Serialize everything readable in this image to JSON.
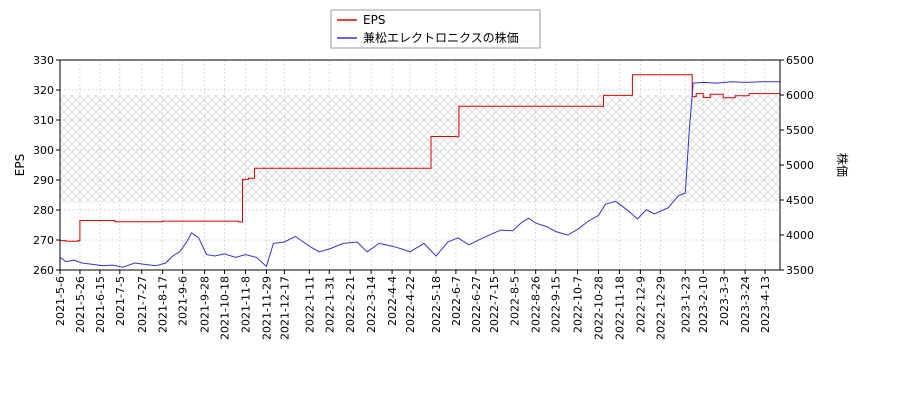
{
  "chart_data": {
    "type": "line",
    "y_left_label": "EPS",
    "y_right_label": "株価",
    "y_left_range": [
      260,
      330
    ],
    "y_right_range": [
      3500,
      6500
    ],
    "y_left_ticks": [
      "260",
      "270",
      "280",
      "290",
      "300",
      "310",
      "320",
      "330"
    ],
    "y_right_ticks": [
      "3500",
      "4000",
      "4500",
      "5000",
      "5500",
      "6000",
      "6500"
    ],
    "x_range": [
      "2021-05-06",
      "2023-04-28"
    ],
    "x_ticks": [
      "2021-5-6",
      "2021-5-26",
      "2021-6-15",
      "2021-7-5",
      "2021-7-27",
      "2021-8-17",
      "2021-9-6",
      "2021-9-28",
      "2021-10-18",
      "2021-11-8",
      "2021-11-29",
      "2021-12-17",
      "2022-1-11",
      "2022-1-31",
      "2022-2-21",
      "2022-3-14",
      "2022-4-4",
      "2022-4-22",
      "2022-5-18",
      "2022-6-7",
      "2022-6-27",
      "2022-7-15",
      "2022-8-5",
      "2022-8-26",
      "2022-9-15",
      "2022-10-7",
      "2022-10-28",
      "2022-11-18",
      "2022-12-9",
      "2022-12-29",
      "2023-1-23",
      "2023-2-10",
      "2023-3-3",
      "2023-3-24",
      "2023-4-13"
    ],
    "legend": {
      "placement": "top-center",
      "entries": [
        "EPS",
        "兼松エレクトロニクスの株価"
      ]
    },
    "grid": true,
    "band_right_axis": [
      4460,
      6000
    ],
    "series": [
      {
        "name": "EPS",
        "axis": "left",
        "color": "#dd0000",
        "step": true,
        "points": [
          [
            "2021-05-06",
            269.8
          ],
          [
            "2021-05-12",
            269.6
          ],
          [
            "2021-05-24",
            269.8
          ],
          [
            "2021-05-26",
            276.5
          ],
          [
            "2021-06-30",
            276.1
          ],
          [
            "2021-08-17",
            276.3
          ],
          [
            "2021-11-01",
            276.0
          ],
          [
            "2021-11-05",
            290.2
          ],
          [
            "2021-11-11",
            290.6
          ],
          [
            "2021-11-17",
            293.9
          ],
          [
            "2022-05-12",
            293.9
          ],
          [
            "2022-05-13",
            304.5
          ],
          [
            "2022-06-07",
            304.4
          ],
          [
            "2022-06-10",
            314.6
          ],
          [
            "2022-10-31",
            314.6
          ],
          [
            "2022-11-02",
            318.2
          ],
          [
            "2022-11-29",
            318.2
          ],
          [
            "2022-12-01",
            325.1
          ],
          [
            "2023-01-26",
            325.1
          ],
          [
            "2023-01-30",
            317.8
          ],
          [
            "2023-02-03",
            318.8
          ],
          [
            "2023-02-10",
            317.5
          ],
          [
            "2023-02-17",
            318.6
          ],
          [
            "2023-03-02",
            317.4
          ],
          [
            "2023-03-14",
            318.1
          ],
          [
            "2023-03-28",
            318.8
          ],
          [
            "2023-04-28",
            318.8
          ]
        ]
      },
      {
        "name": "兼松エレクトロニクスの株価",
        "axis": "right",
        "color": "#3333dd",
        "step": false,
        "points": [
          [
            "2021-05-06",
            3680
          ],
          [
            "2021-05-12",
            3620
          ],
          [
            "2021-05-20",
            3640
          ],
          [
            "2021-05-28",
            3600
          ],
          [
            "2021-06-08",
            3580
          ],
          [
            "2021-06-18",
            3560
          ],
          [
            "2021-06-28",
            3570
          ],
          [
            "2021-07-08",
            3540
          ],
          [
            "2021-07-20",
            3600
          ],
          [
            "2021-07-30",
            3580
          ],
          [
            "2021-08-10",
            3560
          ],
          [
            "2021-08-20",
            3600
          ],
          [
            "2021-08-27",
            3700
          ],
          [
            "2021-09-03",
            3760
          ],
          [
            "2021-09-10",
            3900
          ],
          [
            "2021-09-15",
            4030
          ],
          [
            "2021-09-22",
            3960
          ],
          [
            "2021-09-30",
            3720
          ],
          [
            "2021-10-08",
            3700
          ],
          [
            "2021-10-18",
            3730
          ],
          [
            "2021-10-29",
            3680
          ],
          [
            "2021-11-08",
            3720
          ],
          [
            "2021-11-19",
            3680
          ],
          [
            "2021-11-29",
            3550
          ],
          [
            "2021-12-06",
            3880
          ],
          [
            "2021-12-17",
            3900
          ],
          [
            "2021-12-28",
            3980
          ],
          [
            "2022-01-11",
            3840
          ],
          [
            "2022-01-21",
            3760
          ],
          [
            "2022-01-31",
            3800
          ],
          [
            "2022-02-14",
            3880
          ],
          [
            "2022-02-28",
            3900
          ],
          [
            "2022-03-10",
            3760
          ],
          [
            "2022-03-22",
            3880
          ],
          [
            "2022-04-04",
            3840
          ],
          [
            "2022-04-14",
            3800
          ],
          [
            "2022-04-22",
            3760
          ],
          [
            "2022-05-06",
            3880
          ],
          [
            "2022-05-18",
            3700
          ],
          [
            "2022-05-30",
            3900
          ],
          [
            "2022-06-09",
            3960
          ],
          [
            "2022-06-20",
            3860
          ],
          [
            "2022-06-30",
            3930
          ],
          [
            "2022-07-12",
            4010
          ],
          [
            "2022-07-22",
            4070
          ],
          [
            "2022-08-03",
            4060
          ],
          [
            "2022-08-12",
            4180
          ],
          [
            "2022-08-19",
            4240
          ],
          [
            "2022-08-26",
            4170
          ],
          [
            "2022-09-06",
            4120
          ],
          [
            "2022-09-15",
            4050
          ],
          [
            "2022-09-27",
            4000
          ],
          [
            "2022-10-07",
            4080
          ],
          [
            "2022-10-18",
            4200
          ],
          [
            "2022-10-28",
            4280
          ],
          [
            "2022-11-04",
            4440
          ],
          [
            "2022-11-14",
            4480
          ],
          [
            "2022-11-21",
            4410
          ],
          [
            "2022-11-29",
            4320
          ],
          [
            "2022-12-06",
            4230
          ],
          [
            "2022-12-15",
            4360
          ],
          [
            "2022-12-23",
            4300
          ],
          [
            "2023-01-06",
            4390
          ],
          [
            "2023-01-16",
            4560
          ],
          [
            "2023-01-23",
            4600
          ],
          [
            "2023-01-27",
            5500
          ],
          [
            "2023-01-31",
            6170
          ],
          [
            "2023-02-10",
            6180
          ],
          [
            "2023-02-24",
            6170
          ],
          [
            "2023-03-10",
            6190
          ],
          [
            "2023-03-24",
            6180
          ],
          [
            "2023-04-13",
            6190
          ],
          [
            "2023-04-28",
            6190
          ]
        ]
      }
    ]
  }
}
